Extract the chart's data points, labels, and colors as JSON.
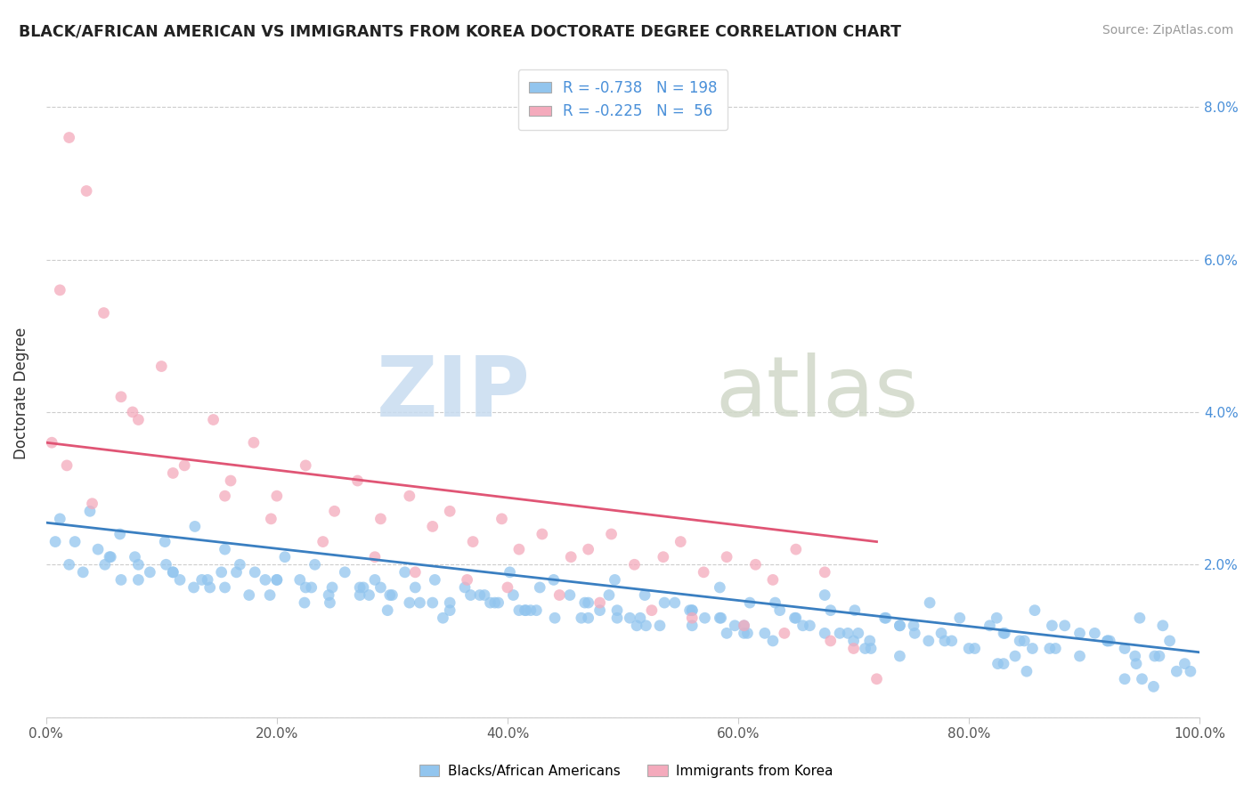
{
  "title": "BLACK/AFRICAN AMERICAN VS IMMIGRANTS FROM KOREA DOCTORATE DEGREE CORRELATION CHART",
  "source": "Source: ZipAtlas.com",
  "ylabel": "Doctorate Degree",
  "watermark_zip": "ZIP",
  "watermark_atlas": "atlas",
  "xlim": [
    0,
    100
  ],
  "ylim": [
    0,
    8.5
  ],
  "yticks": [
    0,
    2,
    4,
    6,
    8
  ],
  "ytick_labels": [
    "",
    "2.0%",
    "4.0%",
    "6.0%",
    "8.0%"
  ],
  "xtick_vals": [
    0,
    20,
    40,
    60,
    80,
    100
  ],
  "xtick_labels": [
    "0.0%",
    "20.0%",
    "40.0%",
    "60.0%",
    "80.0%",
    "100.0%"
  ],
  "blue_R": "-0.738",
  "blue_N": "198",
  "pink_R": "-0.225",
  "pink_N": "56",
  "blue_color": "#92C5EE",
  "pink_color": "#F4AABC",
  "blue_line_color": "#3A7FC1",
  "pink_line_color": "#E05575",
  "legend_label_blue": "Blacks/African Americans",
  "legend_label_pink": "Immigrants from Korea",
  "blue_scatter_x": [
    1.2,
    2.5,
    3.8,
    5.1,
    6.4,
    7.7,
    9.0,
    10.3,
    11.6,
    12.9,
    14.2,
    15.5,
    16.8,
    18.1,
    19.4,
    20.7,
    22.0,
    23.3,
    24.6,
    25.9,
    27.2,
    28.5,
    29.8,
    31.1,
    32.4,
    33.7,
    35.0,
    36.3,
    37.6,
    38.9,
    40.2,
    41.5,
    42.8,
    44.1,
    45.4,
    46.7,
    48.0,
    49.3,
    50.6,
    51.9,
    53.2,
    54.5,
    55.8,
    57.1,
    58.4,
    59.7,
    61.0,
    62.3,
    63.6,
    64.9,
    66.2,
    67.5,
    68.8,
    70.1,
    71.4,
    72.7,
    74.0,
    75.3,
    76.6,
    77.9,
    79.2,
    80.5,
    81.8,
    83.1,
    84.4,
    85.7,
    87.0,
    88.3,
    89.6,
    90.9,
    92.2,
    93.5,
    94.8,
    96.1,
    97.4,
    98.7,
    0.8,
    3.2,
    5.6,
    8.0,
    10.4,
    12.8,
    15.2,
    17.6,
    20.0,
    22.4,
    24.8,
    27.2,
    29.6,
    32.0,
    34.4,
    36.8,
    39.2,
    41.6,
    44.0,
    46.4,
    48.8,
    51.2,
    53.6,
    56.0,
    58.4,
    60.8,
    63.2,
    65.6,
    68.0,
    70.4,
    72.8,
    75.2,
    77.6,
    80.0,
    82.4,
    84.8,
    87.2,
    89.6,
    92.0,
    94.4,
    96.8,
    99.2,
    2.0,
    6.5,
    11.0,
    15.5,
    20.0,
    24.5,
    29.0,
    33.5,
    38.0,
    42.5,
    47.0,
    51.5,
    56.0,
    60.5,
    65.0,
    69.5,
    74.0,
    78.5,
    83.0,
    87.5,
    92.0,
    96.5,
    4.5,
    13.5,
    22.5,
    31.5,
    40.5,
    49.5,
    58.5,
    67.5,
    76.5,
    85.5,
    94.5,
    5.5,
    16.5,
    27.5,
    38.5,
    49.5,
    60.5,
    71.5,
    82.5,
    93.5,
    8.0,
    19.0,
    30.0,
    41.0,
    52.0,
    63.0,
    74.0,
    85.0,
    96.0,
    11.0,
    23.0,
    35.0,
    47.0,
    59.0,
    71.0,
    83.0,
    95.0,
    14.0,
    28.0,
    42.0,
    56.0,
    70.0,
    84.0,
    98.0
  ],
  "blue_scatter_y": [
    2.6,
    2.3,
    2.7,
    2.0,
    2.4,
    2.1,
    1.9,
    2.3,
    1.8,
    2.5,
    1.7,
    2.2,
    2.0,
    1.9,
    1.6,
    2.1,
    1.8,
    2.0,
    1.5,
    1.9,
    1.7,
    1.8,
    1.6,
    1.9,
    1.5,
    1.8,
    1.4,
    1.7,
    1.6,
    1.5,
    1.9,
    1.4,
    1.7,
    1.3,
    1.6,
    1.5,
    1.4,
    1.8,
    1.3,
    1.6,
    1.2,
    1.5,
    1.4,
    1.3,
    1.7,
    1.2,
    1.5,
    1.1,
    1.4,
    1.3,
    1.2,
    1.6,
    1.1,
    1.4,
    1.0,
    1.3,
    1.2,
    1.1,
    1.5,
    1.0,
    1.3,
    0.9,
    1.2,
    1.1,
    1.0,
    1.4,
    0.9,
    1.2,
    0.8,
    1.1,
    1.0,
    0.9,
    1.3,
    0.8,
    1.0,
    0.7,
    2.3,
    1.9,
    2.1,
    1.8,
    2.0,
    1.7,
    1.9,
    1.6,
    1.8,
    1.5,
    1.7,
    1.6,
    1.4,
    1.7,
    1.3,
    1.6,
    1.5,
    1.4,
    1.8,
    1.3,
    1.6,
    1.2,
    1.5,
    1.4,
    1.3,
    1.1,
    1.5,
    1.2,
    1.4,
    1.1,
    1.3,
    1.2,
    1.1,
    0.9,
    1.3,
    1.0,
    1.2,
    1.1,
    1.0,
    0.8,
    1.2,
    0.6,
    2.0,
    1.8,
    1.9,
    1.7,
    1.8,
    1.6,
    1.7,
    1.5,
    1.6,
    1.4,
    1.5,
    1.3,
    1.4,
    1.2,
    1.3,
    1.1,
    1.2,
    1.0,
    1.1,
    0.9,
    1.0,
    0.8,
    2.2,
    1.8,
    1.7,
    1.5,
    1.6,
    1.4,
    1.3,
    1.1,
    1.0,
    0.9,
    0.7,
    2.1,
    1.9,
    1.7,
    1.5,
    1.3,
    1.1,
    0.9,
    0.7,
    0.5,
    2.0,
    1.8,
    1.6,
    1.4,
    1.2,
    1.0,
    0.8,
    0.6,
    0.4,
    1.9,
    1.7,
    1.5,
    1.3,
    1.1,
    0.9,
    0.7,
    0.5,
    1.8,
    1.6,
    1.4,
    1.2,
    1.0,
    0.8,
    0.6
  ],
  "pink_scatter_x": [
    0.5,
    1.2,
    2.0,
    3.5,
    5.0,
    6.5,
    8.0,
    10.0,
    12.0,
    14.5,
    16.0,
    18.0,
    20.0,
    22.5,
    25.0,
    27.0,
    29.0,
    31.5,
    33.5,
    35.0,
    37.0,
    39.5,
    41.0,
    43.0,
    45.5,
    47.0,
    49.0,
    51.0,
    53.5,
    55.0,
    57.0,
    59.0,
    61.5,
    63.0,
    65.0,
    67.5,
    1.8,
    4.0,
    7.5,
    11.0,
    15.5,
    19.5,
    24.0,
    28.5,
    32.0,
    36.5,
    40.0,
    44.5,
    48.0,
    52.5,
    56.0,
    60.5,
    64.0,
    68.0,
    70.0,
    72.0
  ],
  "pink_scatter_y": [
    3.6,
    5.6,
    7.6,
    6.9,
    5.3,
    4.2,
    3.9,
    4.6,
    3.3,
    3.9,
    3.1,
    3.6,
    2.9,
    3.3,
    2.7,
    3.1,
    2.6,
    2.9,
    2.5,
    2.7,
    2.3,
    2.6,
    2.2,
    2.4,
    2.1,
    2.2,
    2.4,
    2.0,
    2.1,
    2.3,
    1.9,
    2.1,
    2.0,
    1.8,
    2.2,
    1.9,
    3.3,
    2.8,
    4.0,
    3.2,
    2.9,
    2.6,
    2.3,
    2.1,
    1.9,
    1.8,
    1.7,
    1.6,
    1.5,
    1.4,
    1.3,
    1.2,
    1.1,
    1.0,
    0.9,
    0.5
  ],
  "blue_line_x": [
    0,
    100
  ],
  "blue_line_y_start": 2.55,
  "blue_line_y_end": 0.85,
  "pink_line_x": [
    0,
    72
  ],
  "pink_line_y_start": 3.6,
  "pink_line_y_end": 2.3
}
